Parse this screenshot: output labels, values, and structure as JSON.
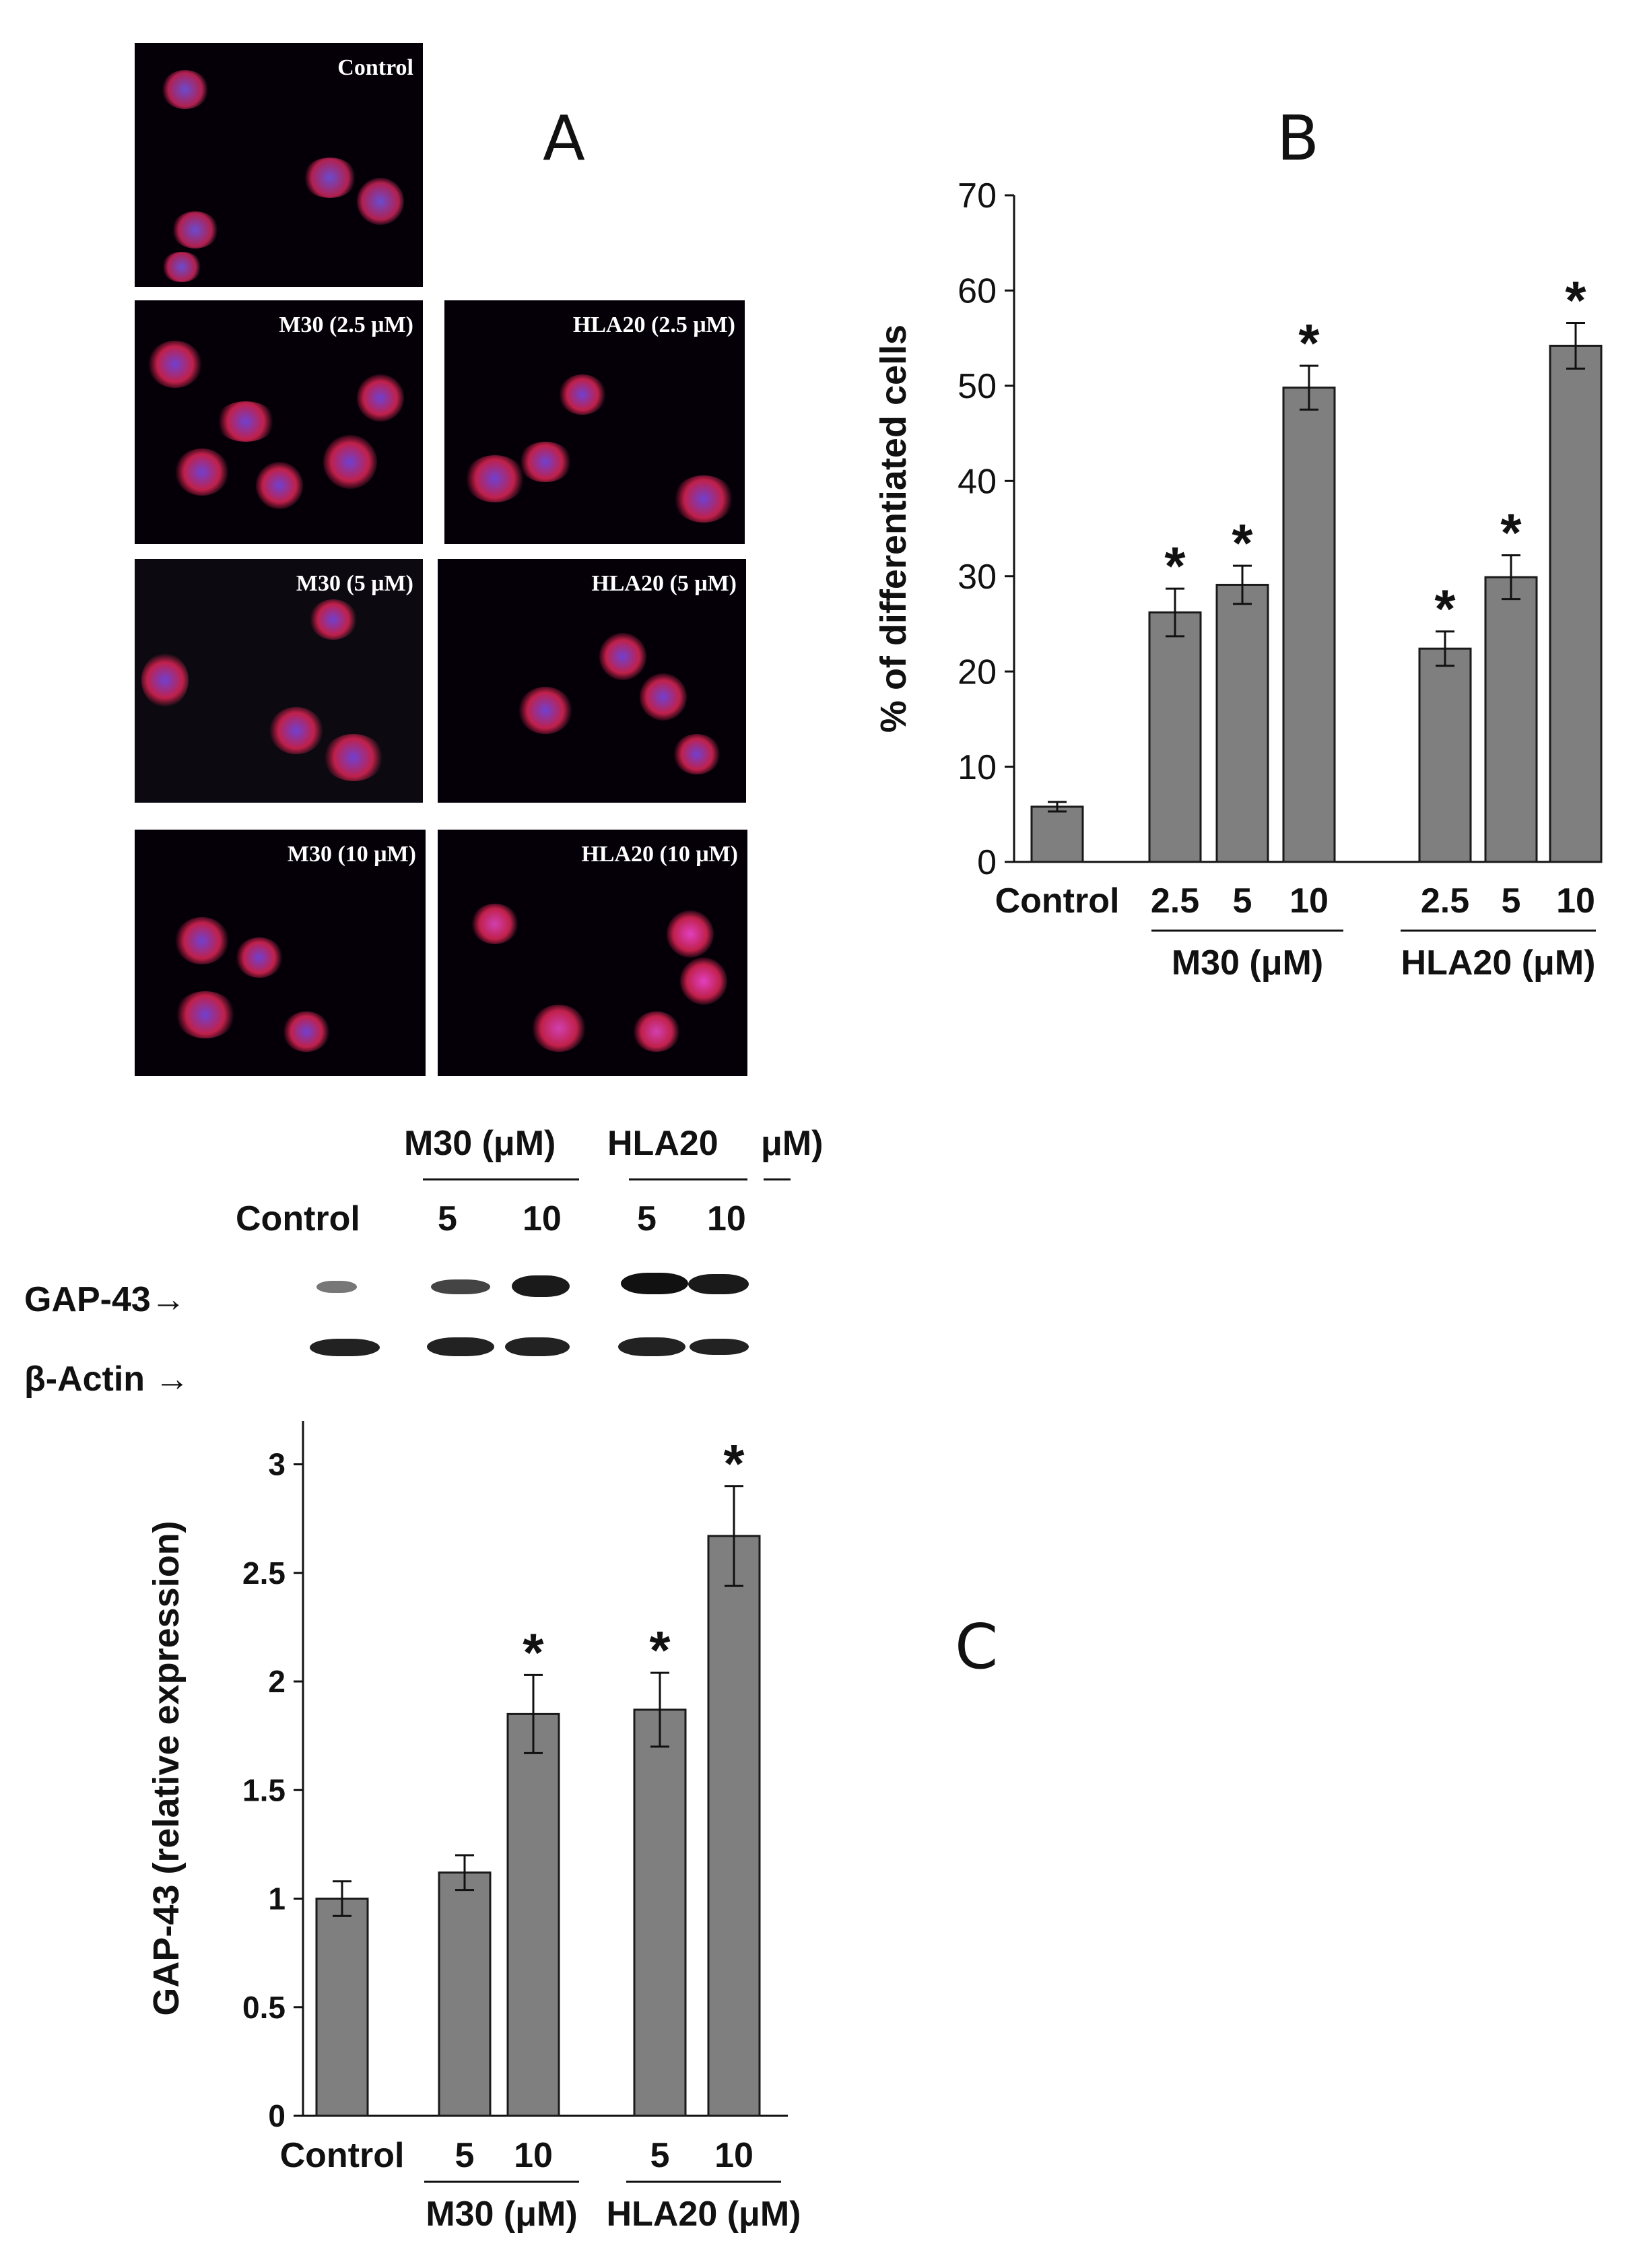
{
  "panels": {
    "A": {
      "letter": "A",
      "images": [
        {
          "label": "Control"
        },
        {
          "label": "M30 (2.5 μM)"
        },
        {
          "label": "HLA20 (2.5 μM)"
        },
        {
          "label": "M30 (5 μM)"
        },
        {
          "label": "HLA20 (5 μM)"
        },
        {
          "label": "M30 (10 μM)"
        },
        {
          "label": "HLA20 (10 μM)"
        }
      ]
    },
    "B": {
      "letter": "B"
    },
    "C": {
      "letter": "C",
      "blot": {
        "group1": "M30 (μM)",
        "group2": "HLA20",
        "unit": "μM)",
        "control": "Control",
        "lanes": [
          "5",
          "10",
          "5",
          "10"
        ],
        "row1": "GAP-43",
        "row2": "β-Actin",
        "arrow": "→"
      }
    }
  },
  "colors": {
    "bar": "#7f7f7f",
    "bar_stroke": "#1a1a1a",
    "axis": "#111111"
  },
  "chart_data": [
    {
      "id": "B",
      "type": "bar",
      "categories": [
        "Control",
        "2.5",
        "5",
        "10",
        "2.5",
        "5",
        "10"
      ],
      "group_labels": [
        "M30 (μM)",
        "HLA20 (μM)"
      ],
      "values": [
        5.8,
        26.2,
        29.1,
        49.8,
        22.4,
        29.9,
        54.2
      ],
      "errors": [
        0.5,
        2.5,
        2.0,
        2.3,
        1.8,
        2.3,
        2.4
      ],
      "significant": [
        false,
        true,
        true,
        true,
        true,
        true,
        true
      ],
      "marker": "*",
      "ylabel": "% of differentiated cells",
      "ylim": [
        0,
        70
      ],
      "yticks": [
        "0",
        "10",
        "20",
        "30",
        "40",
        "50",
        "60",
        "70"
      ],
      "grid": false
    },
    {
      "id": "C",
      "type": "bar",
      "categories": [
        "Control",
        "5",
        "10",
        "5",
        "10"
      ],
      "group_labels": [
        "M30 (μM)",
        "HLA20 (μM)"
      ],
      "values": [
        1.0,
        1.12,
        1.85,
        1.87,
        2.67
      ],
      "errors": [
        0.08,
        0.08,
        0.18,
        0.17,
        0.23
      ],
      "significant": [
        false,
        false,
        true,
        true,
        true
      ],
      "marker": "*",
      "ylabel": "GAP-43 (relative expression)",
      "ylim": [
        0,
        3.2
      ],
      "yticks": [
        "0",
        "0.5",
        "1",
        "1.5",
        "2",
        "2.5",
        "3"
      ],
      "grid": false
    }
  ]
}
